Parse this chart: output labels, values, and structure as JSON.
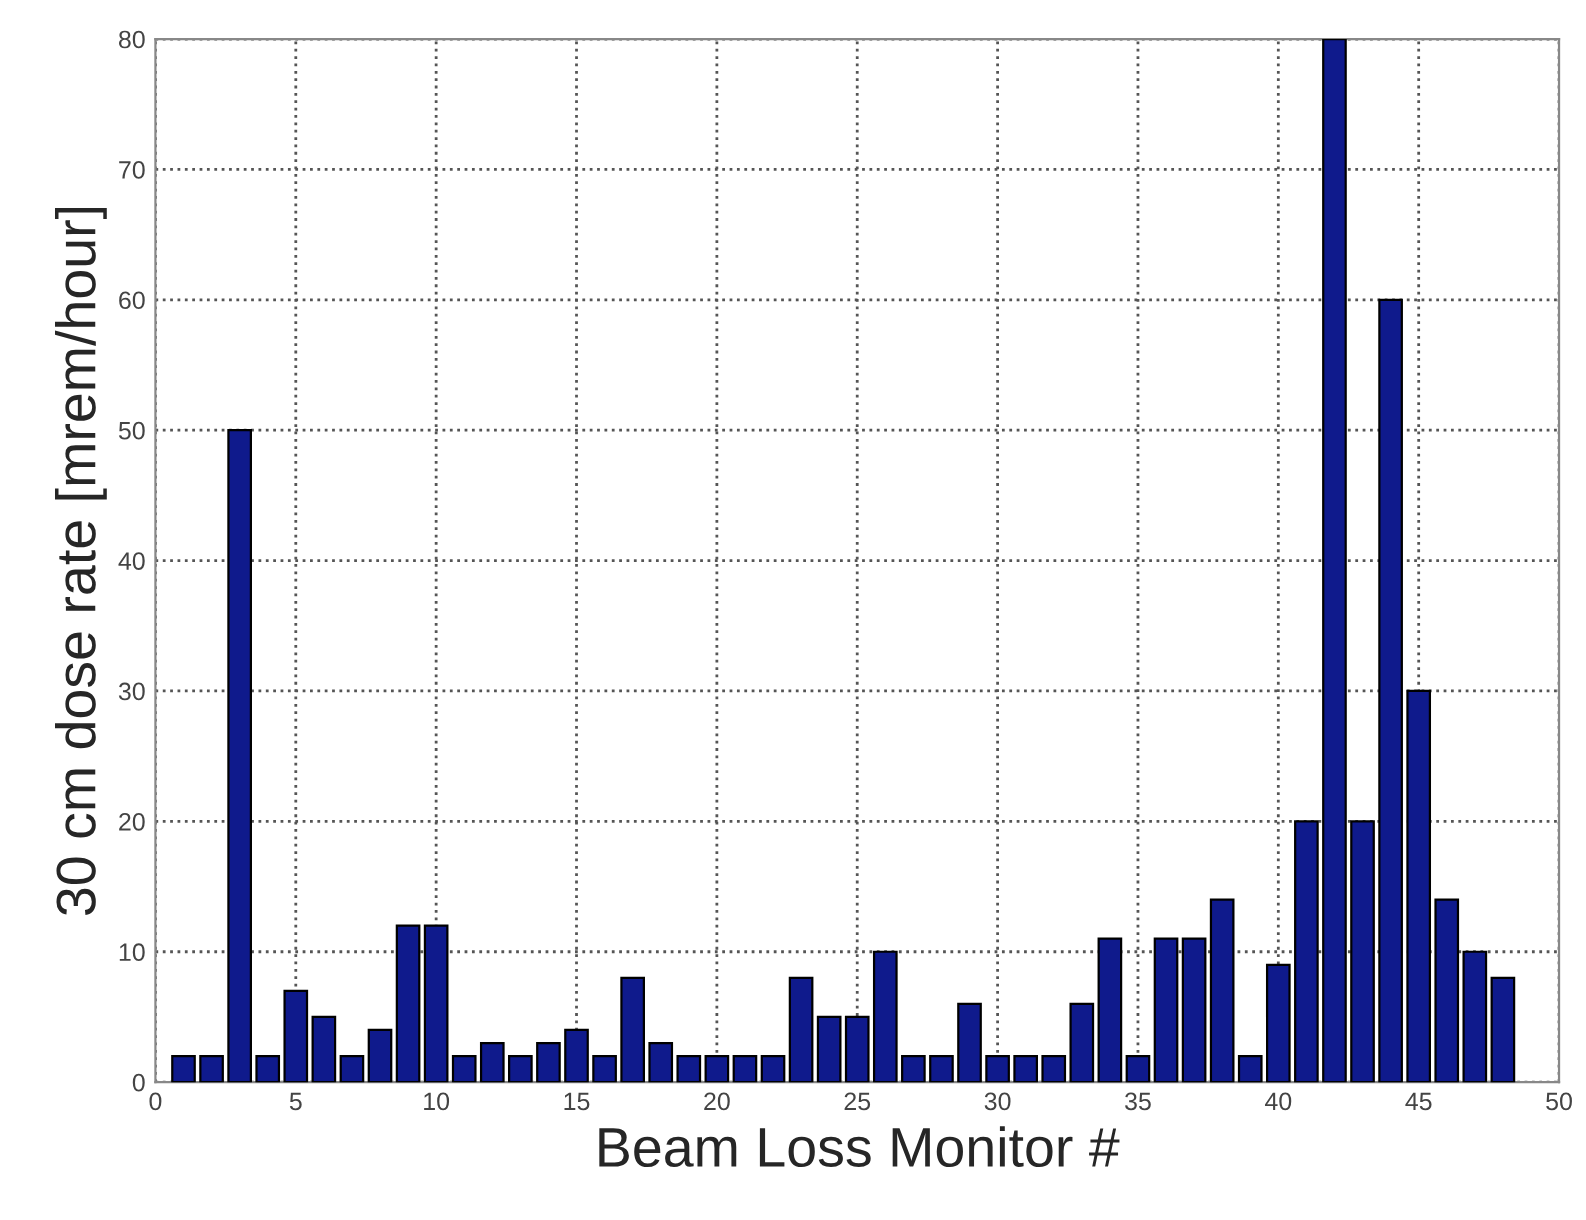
{
  "chart_data": {
    "type": "bar",
    "xlabel": "Beam Loss Monitor #",
    "ylabel": "30 cm dose rate [mrem/hour]",
    "x": [
      1,
      2,
      3,
      4,
      5,
      6,
      7,
      8,
      9,
      10,
      11,
      12,
      13,
      14,
      15,
      16,
      17,
      18,
      19,
      20,
      21,
      22,
      23,
      24,
      25,
      26,
      27,
      28,
      29,
      30,
      31,
      32,
      33,
      34,
      35,
      36,
      37,
      38,
      39,
      40,
      41,
      42,
      43,
      44,
      45,
      46,
      47,
      48
    ],
    "values": [
      2,
      2,
      50,
      2,
      7,
      5,
      2,
      4,
      12,
      12,
      2,
      3,
      2,
      3,
      4,
      2,
      8,
      3,
      2,
      2,
      2,
      2,
      8,
      5,
      5,
      10,
      2,
      2,
      6,
      2,
      2,
      2,
      6,
      11,
      2,
      11,
      11,
      14,
      2,
      9,
      20,
      80,
      20,
      60,
      30,
      14,
      10,
      8
    ],
    "color": "#0f1a8c",
    "xlim": [
      0,
      50
    ],
    "xticks": [
      0,
      5,
      10,
      15,
      20,
      25,
      30,
      35,
      40,
      45,
      50
    ],
    "ylim": [
      0,
      80
    ],
    "yticks": [
      0,
      10,
      20,
      30,
      40,
      50,
      60,
      70,
      80
    ],
    "grid": true
  }
}
